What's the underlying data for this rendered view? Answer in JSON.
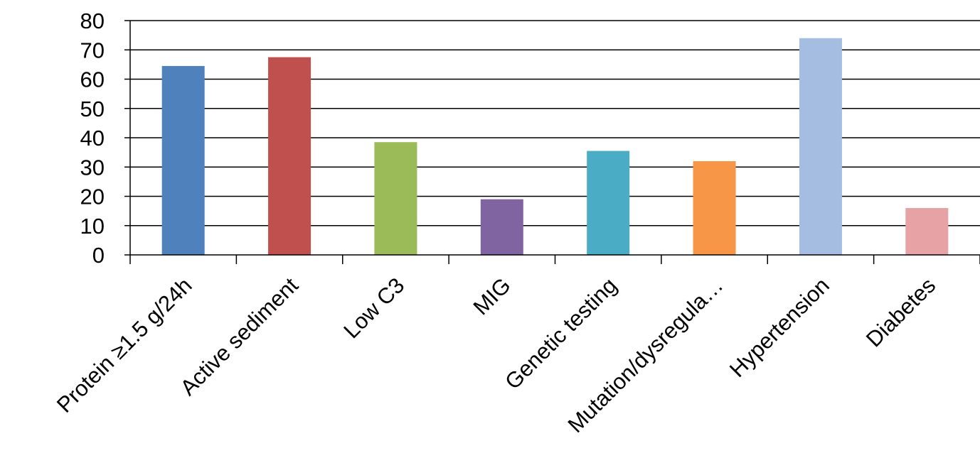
{
  "chart_data": {
    "type": "bar",
    "title": "",
    "xlabel": "",
    "ylabel": "",
    "categories": [
      "Protein ≥1.5 g/24h",
      "Active sediment",
      "Low C3",
      "MIG",
      "Genetic testing",
      "Mutation/dysregula…",
      "Hypertension",
      "Diabetes"
    ],
    "values": [
      64.5,
      67.5,
      38.5,
      19,
      35.5,
      32,
      74,
      16
    ],
    "colors": [
      "#4f81bd",
      "#c0504d",
      "#9bbb59",
      "#8064a2",
      "#4bacc6",
      "#f79646",
      "#a6bde2",
      "#e6a2a4"
    ],
    "ylim": [
      0,
      80
    ],
    "yticks": [
      0,
      10,
      20,
      30,
      40,
      50,
      60,
      70,
      80
    ],
    "grid": true,
    "legend": "none"
  }
}
